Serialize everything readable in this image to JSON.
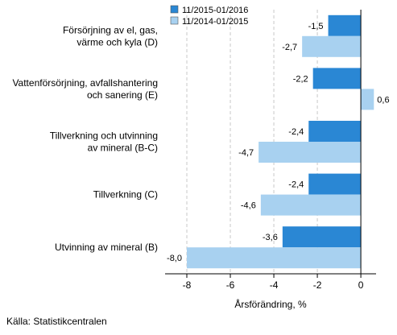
{
  "chart_data": {
    "type": "bar",
    "orientation": "horizontal",
    "categories": [
      [
        "Försörjning av el, gas,",
        "värme och kyla (D)"
      ],
      [
        "Vattenförsörjning, avfallshantering",
        "och sanering (E)"
      ],
      [
        "Tillverkning och utvinning",
        "av mineral (B-C)"
      ],
      [
        "Tillverkning (C)"
      ],
      [
        "Utvinning av mineral (B)"
      ]
    ],
    "series": [
      {
        "name": "11/2015-01/2016",
        "color": "#2a87d4",
        "values": [
          -1.5,
          -2.2,
          -2.4,
          -2.4,
          -3.6
        ],
        "labels": [
          "-1,5",
          "-2,2",
          "-2,4",
          "-2,4",
          "-3,6"
        ]
      },
      {
        "name": "11/2014-01/2015",
        "color": "#a8d1f0",
        "values": [
          -2.7,
          0.6,
          -4.7,
          -4.6,
          -8.0
        ],
        "labels": [
          "-2,7",
          "0,6",
          "-4,7",
          "-4,6",
          "-8,0"
        ]
      }
    ],
    "xlabel": "Årsförändring, %",
    "xlim": [
      -9,
      0.7
    ],
    "xticks": [
      -8,
      -6,
      -4,
      -2,
      0
    ],
    "xtick_labels": [
      "-8",
      "-6",
      "-4",
      "-2",
      "0"
    ],
    "grid": true,
    "legend": "top-left"
  },
  "source": "Källa: Statistikcentralen"
}
